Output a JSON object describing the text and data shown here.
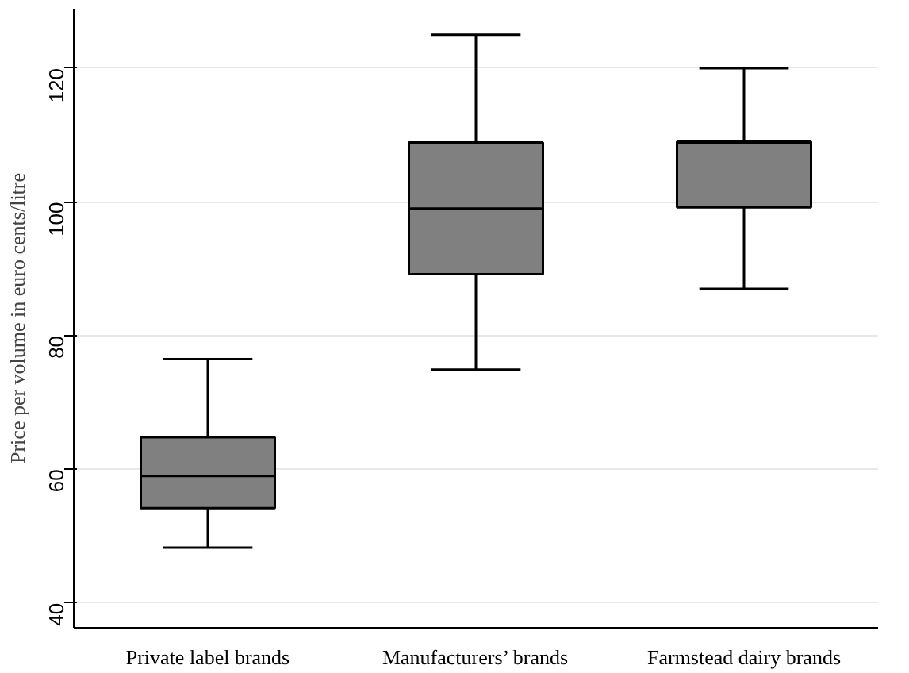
{
  "chart_data": {
    "type": "box",
    "ylabel": "Price per volume in euro cents/litre",
    "categories": [
      "Private label brands",
      "Manufacturers’ brands",
      "Farmstead dairy brands"
    ],
    "boxes": [
      {
        "low": 48.3,
        "q1": 54.2,
        "median": 59,
        "q3": 64.8,
        "high": 76.5
      },
      {
        "low": 74.9,
        "q1": 89.2,
        "median": 99,
        "q3": 108.9,
        "high": 125
      },
      {
        "low": 87,
        "q1": 99.2,
        "median": 108.9,
        "q3": 109,
        "high": 120
      }
    ],
    "color": "#808080",
    "ylim": [
      36.3,
      128.9
    ],
    "yticks": [
      40,
      60,
      80,
      100,
      120
    ],
    "grid": "y"
  }
}
